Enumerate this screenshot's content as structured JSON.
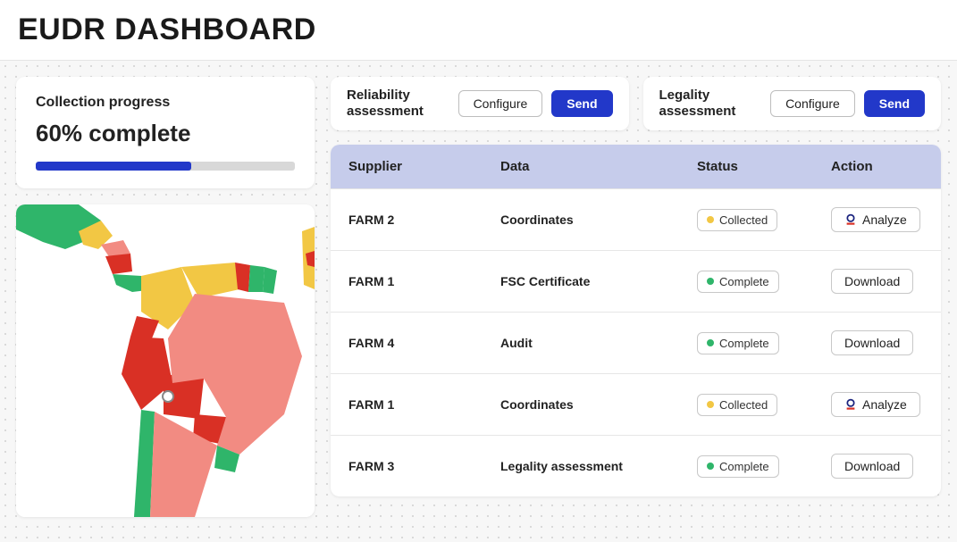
{
  "title": "EUDR DASHBOARD",
  "progress": {
    "label": "Collection progress",
    "value_text": "60% complete",
    "percent": 60,
    "bar_fill_color": "#2238c9",
    "bar_track_color": "#d8d8d8"
  },
  "map": {
    "type": "choropleth",
    "region": "Latin America",
    "background_color": "#ffffff",
    "marker": {
      "lat_approx": -16,
      "lon_approx": -64,
      "color": "#ffffff",
      "outline": "#888888"
    },
    "legend_colors": {
      "green": "#2fb56a",
      "yellow": "#f2c744",
      "coral": "#f28b82",
      "red": "#d93025"
    },
    "countries": [
      {
        "name": "Mexico",
        "color": "#2fb56a"
      },
      {
        "name": "Guatemala",
        "color": "#f2c744"
      },
      {
        "name": "Belize",
        "color": "#f2c744"
      },
      {
        "name": "Honduras",
        "color": "#f28b82"
      },
      {
        "name": "El Salvador",
        "color": "#f28b82"
      },
      {
        "name": "Nicaragua",
        "color": "#d93025"
      },
      {
        "name": "Costa Rica",
        "color": "#2fb56a"
      },
      {
        "name": "Panama",
        "color": "#2fb56a"
      },
      {
        "name": "Colombia",
        "color": "#f2c744"
      },
      {
        "name": "Venezuela",
        "color": "#f2c744"
      },
      {
        "name": "Guyana",
        "color": "#d93025"
      },
      {
        "name": "Suriname",
        "color": "#2fb56a"
      },
      {
        "name": "French Guiana",
        "color": "#2fb56a"
      },
      {
        "name": "Ecuador",
        "color": "#d93025"
      },
      {
        "name": "Peru",
        "color": "#d93025"
      },
      {
        "name": "Bolivia",
        "color": "#d93025"
      },
      {
        "name": "Paraguay",
        "color": "#d93025"
      },
      {
        "name": "Brazil",
        "color": "#f28b82"
      },
      {
        "name": "Chile",
        "color": "#2fb56a"
      },
      {
        "name": "Argentina",
        "color": "#f28b82"
      },
      {
        "name": "Uruguay",
        "color": "#2fb56a"
      },
      {
        "name": "West Africa fragment",
        "color": "#f2c744"
      }
    ]
  },
  "assessments": [
    {
      "title": "Reliability assessment",
      "configure_label": "Configure",
      "send_label": "Send"
    },
    {
      "title": "Legality assessment",
      "configure_label": "Configure",
      "send_label": "Send"
    }
  ],
  "table": {
    "header_bg": "#c6cceb",
    "columns": [
      "Supplier",
      "Data",
      "Status",
      "Action"
    ],
    "status_colors": {
      "Collected": "#f2c744",
      "Complete": "#2fb56a"
    },
    "rows": [
      {
        "supplier": "FARM 2",
        "data": "Coordinates",
        "status": "Collected",
        "action": "Analyze",
        "action_icon": "analyze"
      },
      {
        "supplier": "FARM 1",
        "data": "FSC Certificate",
        "status": "Complete",
        "action": "Download",
        "action_icon": "none"
      },
      {
        "supplier": "FARM 4",
        "data": "Audit",
        "status": "Complete",
        "action": "Download",
        "action_icon": "none"
      },
      {
        "supplier": "FARM 1",
        "data": "Coordinates",
        "status": "Collected",
        "action": "Analyze",
        "action_icon": "analyze"
      },
      {
        "supplier": "FARM 3",
        "data": "Legality assessment",
        "status": "Complete",
        "action": "Download",
        "action_icon": "none"
      }
    ]
  },
  "buttons": {
    "primary_bg": "#2238c9",
    "primary_fg": "#ffffff",
    "secondary_border": "#bdbdbd"
  }
}
